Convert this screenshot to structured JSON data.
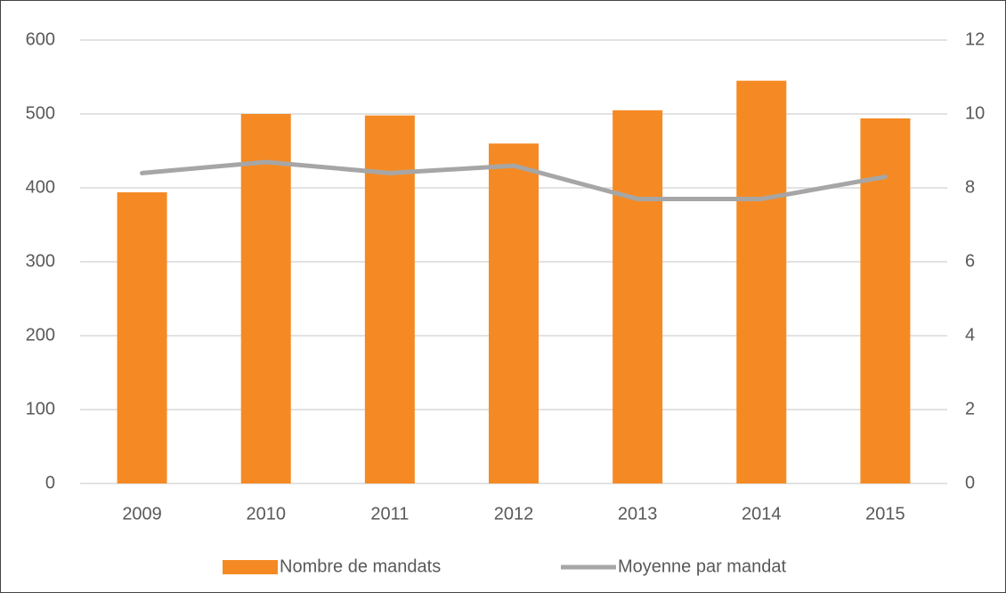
{
  "chart_data": {
    "type": "bar_line",
    "categories": [
      "2009",
      "2010",
      "2011",
      "2012",
      "2013",
      "2014",
      "2015"
    ],
    "series": [
      {
        "name": "Nombre de mandats",
        "color": "#f58a24",
        "type": "bar",
        "axis": "y",
        "values": [
          394,
          500,
          498,
          460,
          505,
          545,
          494
        ]
      },
      {
        "name": "Moyenne par mandat",
        "color": "#a6a6a6",
        "type": "line",
        "axis": "y2",
        "values": [
          8.4,
          8.7,
          8.4,
          8.6,
          7.7,
          7.7,
          8.3
        ]
      }
    ],
    "ylim": [
      0,
      600
    ],
    "yticks": [
      0,
      100,
      200,
      300,
      400,
      500,
      600
    ],
    "y2lim": [
      0,
      12
    ],
    "y2ticks": [
      0,
      2,
      4,
      6,
      8,
      10,
      12
    ],
    "grid": true,
    "legend": "bottom"
  }
}
